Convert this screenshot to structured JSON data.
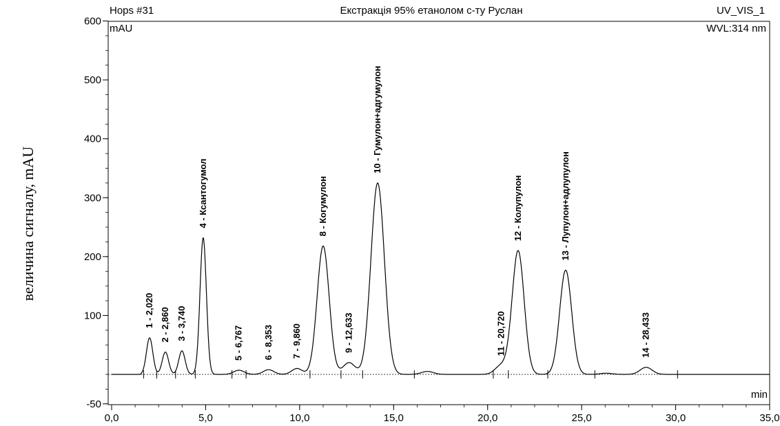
{
  "chart_data": {
    "type": "line",
    "header": {
      "left": "Hops #31",
      "center": "Екстракція 95% етанолом с-ту Руслан",
      "right": "UV_VIS_1",
      "wavelength": "WVL:314 nm"
    },
    "ylabel_outer": "величина сигналу, mAU",
    "ylabel_unit": "mAU",
    "xlabel": "min",
    "xlim": [
      0,
      35
    ],
    "ylim": [
      -50,
      600
    ],
    "x_ticks": [
      "0,0",
      "5,0",
      "10,0",
      "15,0",
      "20,0",
      "25,0",
      "30,0",
      "35,0"
    ],
    "y_ticks": [
      "-50",
      "100",
      "200",
      "300",
      "400",
      "500",
      "600"
    ],
    "peaks": [
      {
        "label": "1 - 2,020",
        "rt": 2.02,
        "height": 62
      },
      {
        "label": "2 - 2,860",
        "rt": 2.86,
        "height": 38
      },
      {
        "label": "3 - 3,740",
        "rt": 3.74,
        "height": 40
      },
      {
        "label": "4 - Ксантогумол",
        "rt": 4.87,
        "height": 232
      },
      {
        "label": "5 - 6,767",
        "rt": 6.77,
        "height": 7
      },
      {
        "label": "6 - 8,353",
        "rt": 8.35,
        "height": 8
      },
      {
        "label": "7 - 9,860",
        "rt": 9.86,
        "height": 10
      },
      {
        "label": "8 - Когумулон",
        "rt": 11.25,
        "height": 218
      },
      {
        "label": "9 - 12,633",
        "rt": 12.63,
        "height": 20
      },
      {
        "label": "10 - Гумулон+адгумулон",
        "rt": 14.15,
        "height": 325
      },
      {
        "label": "11 - 20,720",
        "rt": 20.72,
        "height": 15
      },
      {
        "label": "12 - Колупулон",
        "rt": 21.62,
        "height": 210
      },
      {
        "label": "13 - Лупулон+адлупулон",
        "rt": 24.15,
        "height": 177
      },
      {
        "label": "14 - 28,433",
        "rt": 28.43,
        "height": 12
      }
    ]
  }
}
